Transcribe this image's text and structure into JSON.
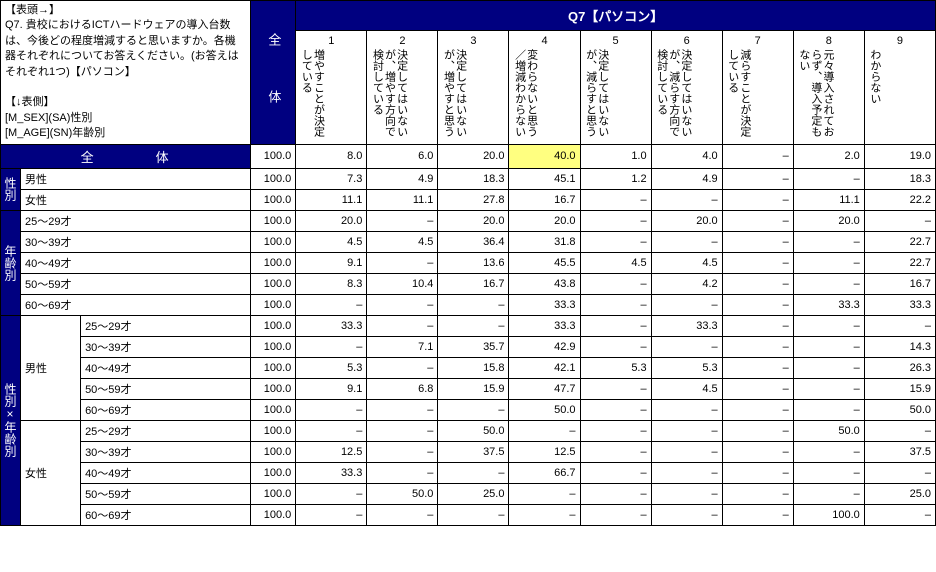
{
  "header_left_title": "【表頭→】",
  "header_left_q": "Q7. 貴校におけるICTハードウェアの導入台数は、今後どの程度増減すると思いますか。各機器それぞれについてお答えください。(お答えはそれぞれ1つ)【パソコン】",
  "header_left_side1": "【↓表側】",
  "header_left_side2": "[M_SEX](SA)性別",
  "header_left_side3": "[M_AGE](SN)年齢別",
  "zentai_v": "全　　体",
  "q_header": "Q7【パソコン】",
  "cols": [
    {
      "n": "1",
      "l": "増やすことが決定している"
    },
    {
      "n": "2",
      "l": "決定してはいないが、増やす方向で検討している"
    },
    {
      "n": "3",
      "l": "決定してはいないが、増やすと思う"
    },
    {
      "n": "4",
      "l": "変わらないと思う／増減わからない"
    },
    {
      "n": "5",
      "l": "決定してはいないが、減らすと思う"
    },
    {
      "n": "6",
      "l": "決定してはいないが、減らす方向で検討している"
    },
    {
      "n": "7",
      "l": "減らすことが決定している"
    },
    {
      "n": "8",
      "l": "元々導入されておらず、導入予定もない"
    },
    {
      "n": "9",
      "l": "わからない"
    }
  ],
  "total_label": "全　　　　体",
  "cat_sex": "性別",
  "cat_age": "年齢別",
  "cat_sexage": "性別×年齢別",
  "lab_m": "男性",
  "lab_f": "女性",
  "lab_a1": "25～29才",
  "lab_a2": "30～39才",
  "lab_a3": "40～49才",
  "lab_a4": "50～59才",
  "lab_a5": "60～69才",
  "rows": {
    "total": [
      "100.0",
      "8.0",
      "6.0",
      "20.0",
      "40.0",
      "1.0",
      "4.0",
      "–",
      "2.0",
      "19.0"
    ],
    "m": [
      "100.0",
      "7.3",
      "4.9",
      "18.3",
      "45.1",
      "1.2",
      "4.9",
      "–",
      "–",
      "18.3"
    ],
    "f": [
      "100.0",
      "11.1",
      "11.1",
      "27.8",
      "16.7",
      "–",
      "–",
      "–",
      "11.1",
      "22.2"
    ],
    "a1": [
      "100.0",
      "20.0",
      "–",
      "20.0",
      "20.0",
      "–",
      "20.0",
      "–",
      "20.0",
      "–"
    ],
    "a2": [
      "100.0",
      "4.5",
      "4.5",
      "36.4",
      "31.8",
      "–",
      "–",
      "–",
      "–",
      "22.7"
    ],
    "a3": [
      "100.0",
      "9.1",
      "–",
      "13.6",
      "45.5",
      "4.5",
      "4.5",
      "–",
      "–",
      "22.7"
    ],
    "a4": [
      "100.0",
      "8.3",
      "10.4",
      "16.7",
      "43.8",
      "–",
      "4.2",
      "–",
      "–",
      "16.7"
    ],
    "a5": [
      "100.0",
      "–",
      "–",
      "–",
      "33.3",
      "–",
      "–",
      "–",
      "33.3",
      "33.3"
    ],
    "ma1": [
      "100.0",
      "33.3",
      "–",
      "–",
      "33.3",
      "–",
      "33.3",
      "–",
      "–",
      "–"
    ],
    "ma2": [
      "100.0",
      "–",
      "7.1",
      "35.7",
      "42.9",
      "–",
      "–",
      "–",
      "–",
      "14.3"
    ],
    "ma3": [
      "100.0",
      "5.3",
      "–",
      "15.8",
      "42.1",
      "5.3",
      "5.3",
      "–",
      "–",
      "26.3"
    ],
    "ma4": [
      "100.0",
      "9.1",
      "6.8",
      "15.9",
      "47.7",
      "–",
      "4.5",
      "–",
      "–",
      "15.9"
    ],
    "ma5": [
      "100.0",
      "–",
      "–",
      "–",
      "50.0",
      "–",
      "–",
      "–",
      "–",
      "50.0"
    ],
    "fa1": [
      "100.0",
      "–",
      "–",
      "50.0",
      "–",
      "–",
      "–",
      "–",
      "50.0",
      "–"
    ],
    "fa2": [
      "100.0",
      "12.5",
      "–",
      "37.5",
      "12.5",
      "–",
      "–",
      "–",
      "–",
      "37.5"
    ],
    "fa3": [
      "100.0",
      "33.3",
      "–",
      "–",
      "66.7",
      "–",
      "–",
      "–",
      "–",
      "–"
    ],
    "fa4": [
      "100.0",
      "–",
      "50.0",
      "25.0",
      "–",
      "–",
      "–",
      "–",
      "–",
      "25.0"
    ],
    "fa5": [
      "100.0",
      "–",
      "–",
      "–",
      "–",
      "–",
      "–",
      "–",
      "100.0",
      "–"
    ]
  },
  "highlight": {
    "row": "total",
    "col": 4
  }
}
